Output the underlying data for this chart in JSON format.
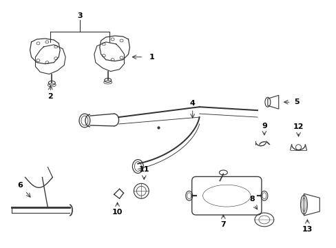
{
  "background_color": "#ffffff",
  "line_color": "#333333",
  "line_width": 0.8,
  "figure_width": 4.89,
  "figure_height": 3.6,
  "dpi": 100
}
